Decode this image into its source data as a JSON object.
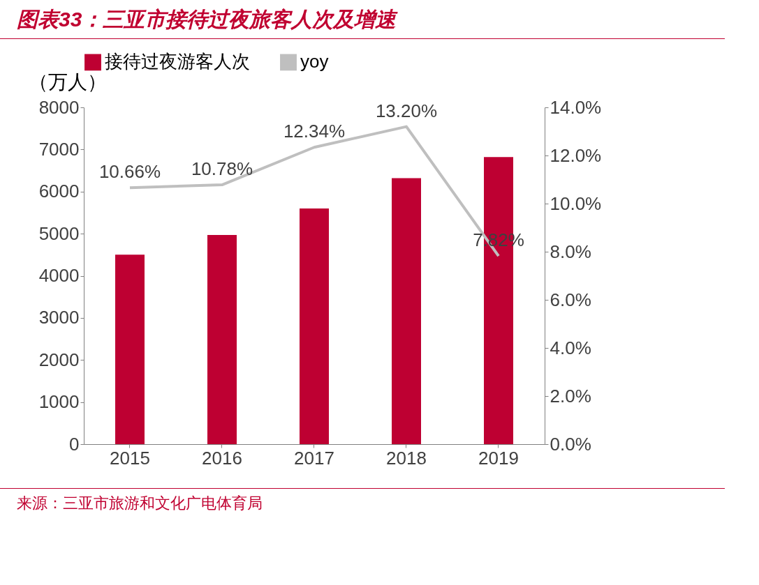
{
  "chart_data": {
    "type": "bar",
    "title": "图表33：三亚市接待过夜旅客人次及增速",
    "ylabel": "（万人）",
    "categories": [
      "2015",
      "2016",
      "2017",
      "2018",
      "2019"
    ],
    "series": [
      {
        "name": "接待过夜游客人次",
        "color": "#be0032",
        "values": [
          4500,
          4970,
          5600,
          6320,
          6820
        ]
      },
      {
        "name": "yoy",
        "type": "line",
        "axis": "y2",
        "color": "#bfbfbf",
        "values": [
          10.66,
          10.78,
          12.34,
          13.2,
          7.82
        ],
        "value_labels": [
          "10.66%",
          "10.78%",
          "12.34%",
          "13.20%",
          "7.82%"
        ]
      }
    ],
    "ylim": [
      0,
      8000
    ],
    "yticks": [
      0,
      1000,
      2000,
      3000,
      4000,
      5000,
      6000,
      7000,
      8000
    ],
    "y2lim": [
      0,
      14
    ],
    "y2ticks": [
      {
        "value": 0,
        "label": "0.0%"
      },
      {
        "value": 2,
        "label": "2.0%"
      },
      {
        "value": 4,
        "label": "4.0%"
      },
      {
        "value": 6,
        "label": "6.0%"
      },
      {
        "value": 8,
        "label": "8.0%"
      },
      {
        "value": 10,
        "label": "10.0%"
      },
      {
        "value": 12,
        "label": "12.0%"
      },
      {
        "value": 14,
        "label": "14.0%"
      }
    ],
    "grid": false,
    "legend": "top",
    "marker": "none",
    "line_style": "solid",
    "annotations": [
      "来源：三亚市旅游和文化广电体育局"
    ]
  }
}
